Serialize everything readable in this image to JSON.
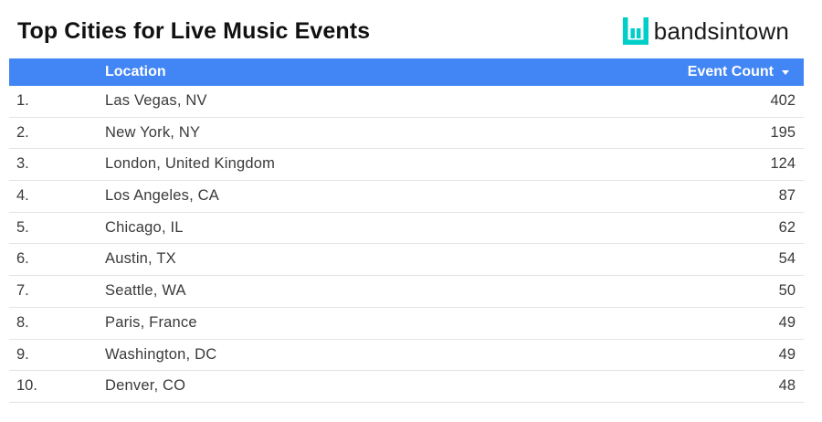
{
  "title": "Top Cities for Live Music Events",
  "brand": {
    "name": "bandsintown",
    "logo_icon": "bandsintown-logo-icon",
    "logo_color": "#00cec8"
  },
  "colors": {
    "header_bg": "#4285f4",
    "header_text": "#ffffff",
    "row_text": "#3a3a3a",
    "row_divider": "#e3e3e3"
  },
  "chart_data": {
    "type": "table",
    "columns": [
      "",
      "Location",
      "Event Count"
    ],
    "sort": {
      "column": "Event Count",
      "direction": "descending"
    },
    "rows": [
      {
        "rank": "1.",
        "location": "Las Vegas, NV",
        "count": 402
      },
      {
        "rank": "2.",
        "location": "New York, NY",
        "count": 195
      },
      {
        "rank": "3.",
        "location": "London, United Kingdom",
        "count": 124
      },
      {
        "rank": "4.",
        "location": "Los Angeles, CA",
        "count": 87
      },
      {
        "rank": "5.",
        "location": "Chicago, IL",
        "count": 62
      },
      {
        "rank": "6.",
        "location": "Austin, TX",
        "count": 54
      },
      {
        "rank": "7.",
        "location": "Seattle, WA",
        "count": 50
      },
      {
        "rank": "8.",
        "location": "Paris, France",
        "count": 49
      },
      {
        "rank": "9.",
        "location": "Washington, DC",
        "count": 49
      },
      {
        "rank": "10.",
        "location": "Denver, CO",
        "count": 48
      }
    ]
  }
}
